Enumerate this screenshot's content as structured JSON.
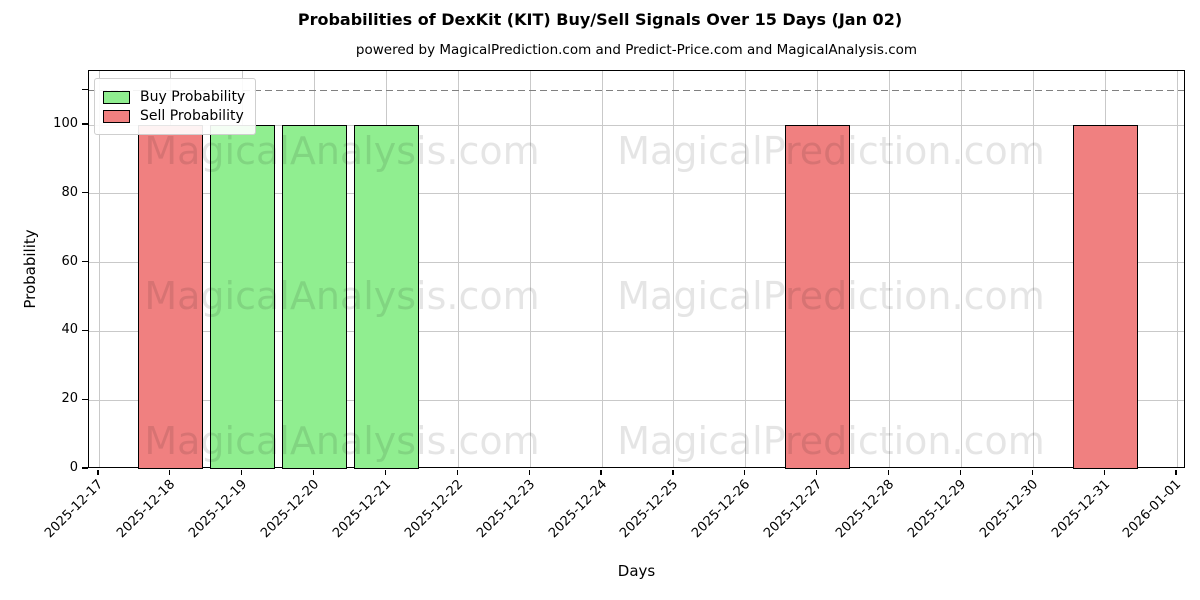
{
  "chart_data": {
    "type": "bar",
    "title": "Probabilities of DexKit (KIT) Buy/Sell Signals Over 15 Days (Jan 02)",
    "subtitle": "powered by MagicalPrediction.com and Predict-Price.com and MagicalAnalysis.com",
    "xlabel": "Days",
    "ylabel": "Probability",
    "categories": [
      "2025-12-17",
      "2025-12-18",
      "2025-12-19",
      "2025-12-20",
      "2025-12-21",
      "2025-12-22",
      "2025-12-23",
      "2025-12-24",
      "2025-12-25",
      "2025-12-26",
      "2025-12-27",
      "2025-12-28",
      "2025-12-29",
      "2025-12-30",
      "2025-12-31",
      "2026-01-01"
    ],
    "series": [
      {
        "name": "Buy Probability",
        "color": "#90EE90",
        "values": [
          0,
          0,
          100,
          100,
          100,
          0,
          0,
          0,
          0,
          0,
          0,
          0,
          0,
          0,
          0,
          0
        ]
      },
      {
        "name": "Sell Probability",
        "color": "#F08080",
        "values": [
          0,
          100,
          0,
          0,
          0,
          0,
          0,
          0,
          0,
          0,
          100,
          0,
          0,
          0,
          100,
          0
        ]
      }
    ],
    "ylim": [
      0,
      115.7
    ],
    "yticks": [
      0,
      20,
      40,
      60,
      80,
      100
    ],
    "unlabeled_ytick": 110,
    "threshold_line": {
      "value": 110,
      "style": "dashed",
      "color": "#808080"
    },
    "grid": true,
    "legend_position": "upper-left",
    "bar_edge_color": "#000000",
    "bar_width_fraction": 0.9,
    "watermarks": {
      "texts": [
        "MagicalAnalysis.com",
        "MagicalPrediction.com"
      ],
      "rows": 3
    }
  }
}
